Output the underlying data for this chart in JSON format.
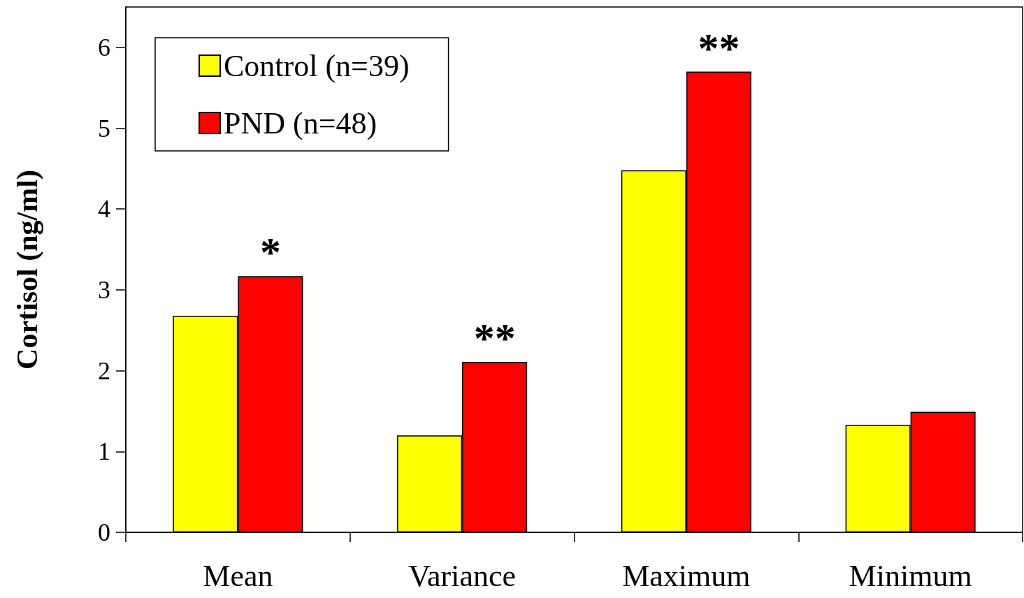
{
  "chart_data": {
    "type": "bar",
    "ylabel": "Cortisol (ng/ml)",
    "categories": [
      "Mean",
      "Variance",
      "Maximum",
      "Minimum"
    ],
    "series": [
      {
        "name": "Control (n=39)",
        "color": "#ffff00",
        "values": [
          2.68,
          1.2,
          4.48,
          1.33
        ]
      },
      {
        "name": "PND (n=48)",
        "color": "#ff0000",
        "values": [
          3.17,
          2.11,
          5.7,
          1.49
        ],
        "value_labels": [
          "*",
          "**",
          "**",
          null
        ]
      }
    ],
    "ylim": [
      0,
      6.5
    ],
    "yticks": [
      0,
      1,
      2,
      3,
      4,
      5,
      6
    ],
    "grid": false,
    "legend": "top left"
  }
}
